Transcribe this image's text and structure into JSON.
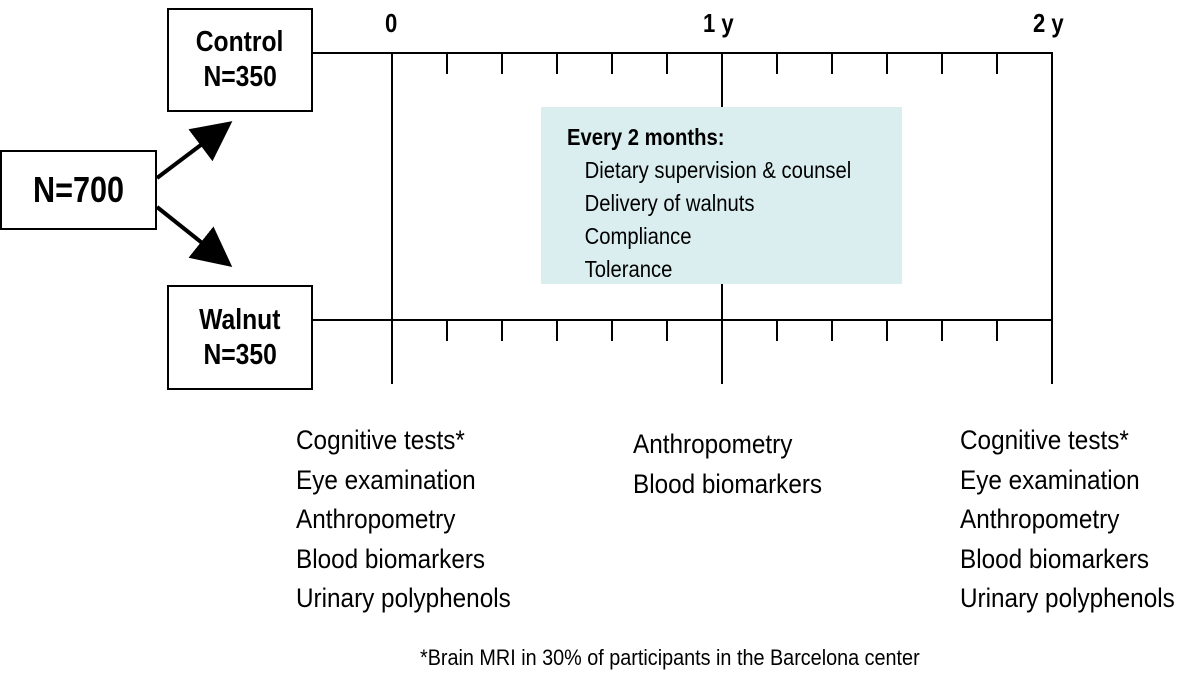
{
  "total": "N=700",
  "groups": [
    {
      "name": "Control",
      "n": "N=350"
    },
    {
      "name": "Walnut",
      "n": "N=350"
    }
  ],
  "timeline": {
    "labels": [
      "0",
      "1 y",
      "2 y"
    ],
    "tick_interval_months": 2
  },
  "every_box": {
    "title": "Every 2 months:",
    "items": [
      "Dietary supervision & counsel",
      "Delivery of walnuts",
      "Compliance",
      "Tolerance"
    ],
    "color": "#daeef0"
  },
  "assessments": {
    "baseline": [
      "Cognitive tests*",
      "Eye examination",
      "Anthropometry",
      "Blood biomarkers",
      "Urinary polyphenols"
    ],
    "year1": [
      "Anthropometry",
      "Blood biomarkers"
    ],
    "year2": [
      "Cognitive tests*",
      "Eye examination",
      "Anthropometry",
      "Blood biomarkers",
      "Urinary polyphenols"
    ]
  },
  "footnote": "*Brain MRI in 30% of participants in the Barcelona center"
}
